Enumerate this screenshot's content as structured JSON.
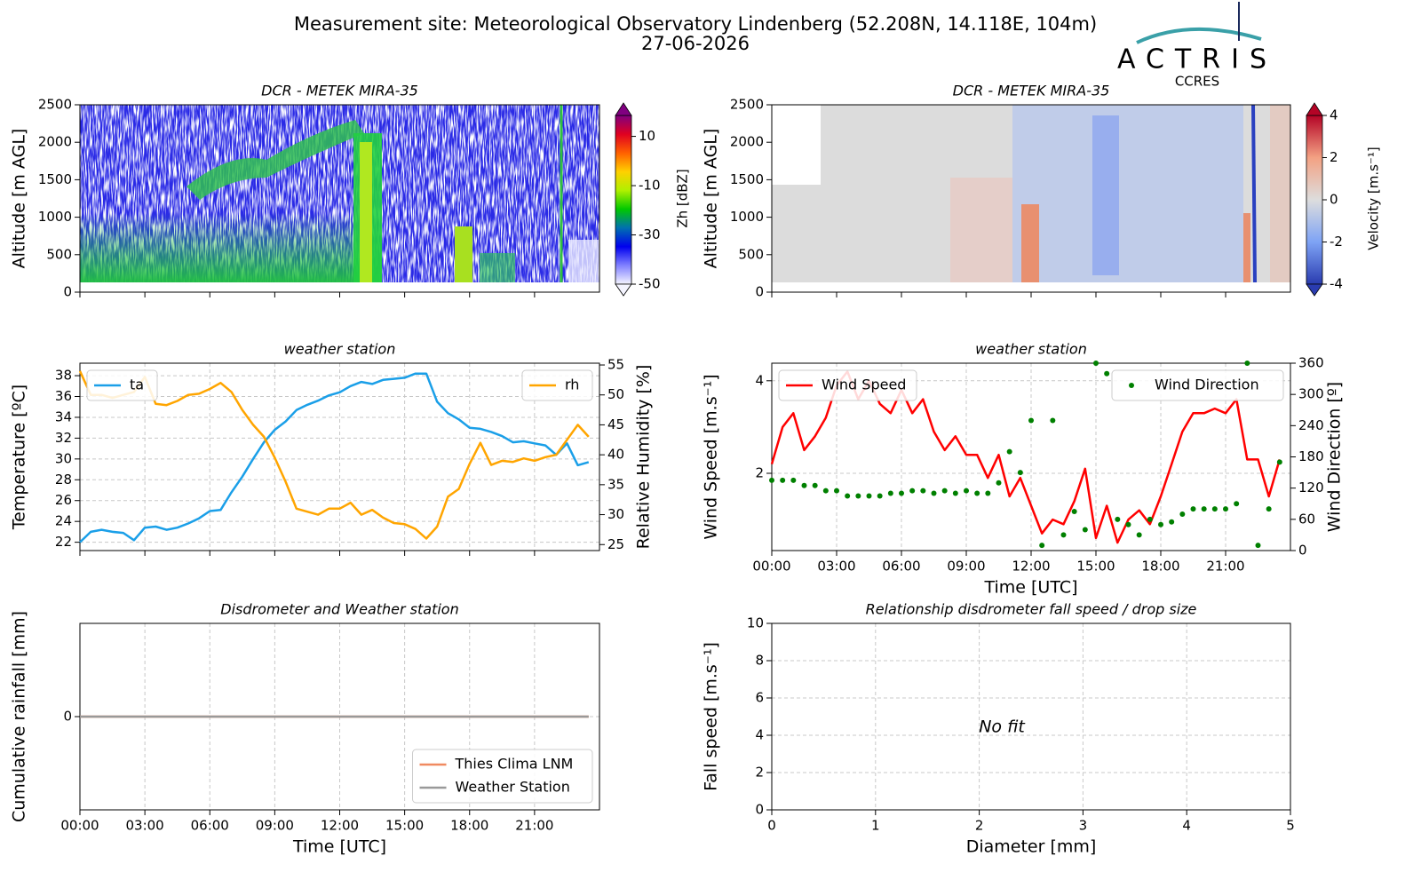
{
  "header": {
    "title": "Measurement site: Meteorological Observatory Lindenberg (52.208N, 14.118E, 104m)",
    "date": "27-06-2026"
  },
  "logo": {
    "name": "ACTRIS",
    "sub": "CCRES"
  },
  "chart_data": [
    {
      "type": "heatmap",
      "title": "DCR - METEK MIRA-35",
      "y_label": "Altitude [m AGL]",
      "xlim": [
        0,
        24
      ],
      "xticks": [
        0,
        3,
        6,
        9,
        12,
        15,
        18,
        21
      ],
      "xtick_labels": false,
      "ylim": [
        0,
        2500
      ],
      "yticks": [
        0,
        500,
        1000,
        1500,
        2000,
        2500
      ],
      "grid": false,
      "colorbar": {
        "label": "Zh [dBZ]",
        "lim": [
          -50,
          18.5
        ],
        "ticks": [
          -50,
          -30,
          -10,
          10
        ],
        "colors": [
          "#f4f4ff",
          "#8080ff",
          "#0000ee",
          "#0070b0",
          "#00c800",
          "#b0f000",
          "#ffd000",
          "#ff6000",
          "#e00020",
          "#800080"
        ]
      }
    },
    {
      "type": "heatmap",
      "title": "DCR - METEK MIRA-35",
      "y_label": "Altitude [m AGL]",
      "xlim": [
        0,
        24
      ],
      "xticks": [
        0,
        3,
        6,
        9,
        12,
        15,
        18,
        21
      ],
      "xtick_labels": false,
      "ylim": [
        0,
        2500
      ],
      "yticks": [
        0,
        500,
        1000,
        1500,
        2000,
        2500
      ],
      "grid": false,
      "colorbar": {
        "label": "Velocity [m.s⁻¹]",
        "lim": [
          -4,
          4
        ],
        "ticks": [
          -4,
          -2,
          0,
          2,
          4
        ],
        "colors": [
          "#2a3cb0",
          "#7ea3f5",
          "#dddddd",
          "#f3a183",
          "#b40426"
        ]
      }
    },
    {
      "type": "line",
      "title": "weather station",
      "y_label": "Temperature [ºC]",
      "y2_label": "Relative Humidity [%]",
      "xlim": [
        0,
        24
      ],
      "xticks": [
        0,
        3,
        6,
        9,
        12,
        15,
        18,
        21
      ],
      "xtick_labels": false,
      "ylim": [
        21.2,
        39.2
      ],
      "yticks": [
        22,
        24,
        26,
        28,
        30,
        32,
        34,
        36,
        38
      ],
      "y2lim": [
        24,
        55.3
      ],
      "y2ticks": [
        25,
        30,
        35,
        40,
        45,
        50,
        55
      ],
      "grid": true,
      "x": [
        0,
        0.5,
        1,
        1.5,
        2,
        2.5,
        3,
        3.5,
        4,
        4.5,
        5,
        5.5,
        6,
        6.5,
        7,
        7.5,
        8,
        8.5,
        9,
        9.5,
        10,
        10.5,
        11,
        11.5,
        12,
        12.5,
        13,
        13.5,
        14,
        14.5,
        15,
        15.5,
        16,
        16.5,
        17,
        17.5,
        18,
        18.5,
        19,
        19.5,
        20,
        20.5,
        21,
        21.5,
        22,
        22.5,
        23,
        23.5
      ],
      "series": [
        {
          "name": "ta",
          "color": "#1a9fe8",
          "style": "line",
          "legend": "upper left",
          "values": [
            22,
            23,
            23.2,
            23,
            22.9,
            22.2,
            23.4,
            23.5,
            23.2,
            23.4,
            23.8,
            24.3,
            25,
            25.1,
            26.8,
            28.3,
            30,
            31.6,
            32.8,
            33.6,
            34.7,
            35.2,
            35.6,
            36.1,
            36.4,
            37,
            37.4,
            37.2,
            37.6,
            37.7,
            37.8,
            38.2,
            38.2,
            35.5,
            34.4,
            33.8,
            33,
            32.9,
            32.6,
            32.2,
            31.6,
            31.7,
            31.5,
            31.3,
            30.4,
            31.5,
            29.4,
            29.7
          ]
        },
        {
          "name": "rh",
          "color": "#ffa500",
          "style": "line",
          "legend": "upper right",
          "axis": "y2",
          "values": [
            54,
            50,
            50,
            49.5,
            50,
            50.5,
            53,
            48.5,
            48.3,
            49,
            50,
            50.2,
            51,
            52,
            50.5,
            47.5,
            45,
            43,
            39.5,
            35.5,
            31,
            30.5,
            30,
            31,
            31,
            32,
            30,
            30.8,
            29.5,
            28.6,
            28.4,
            27.6,
            26,
            28,
            33,
            34.3,
            38.5,
            42,
            38.3,
            39,
            38.8,
            39.4,
            39,
            39.6,
            40,
            42.5,
            45,
            43
          ]
        }
      ]
    },
    {
      "type": "line",
      "title": "weather station",
      "y_label": "Wind Speed [m.s⁻¹]",
      "y2_label": "Wind Direction [º]",
      "x_label": "Time [UTC]",
      "xlim": [
        0,
        24
      ],
      "xticks": [
        {
          "value": 0,
          "label": "00:00"
        },
        {
          "value": 3,
          "label": "03:00"
        },
        {
          "value": 6,
          "label": "06:00"
        },
        {
          "value": 9,
          "label": "09:00"
        },
        {
          "value": 12,
          "label": "12:00"
        },
        {
          "value": 15,
          "label": "15:00"
        },
        {
          "value": 18,
          "label": "18:00"
        },
        {
          "value": 21,
          "label": "21:00"
        }
      ],
      "ylim": [
        0.33,
        4.38
      ],
      "yticks": [
        2,
        4
      ],
      "y2lim": [
        0,
        360
      ],
      "y2ticks": [
        0,
        60,
        120,
        180,
        240,
        300,
        360
      ],
      "grid": true,
      "x": [
        0,
        0.5,
        1,
        1.5,
        2,
        2.5,
        3,
        3.5,
        4,
        4.5,
        5,
        5.5,
        6,
        6.5,
        7,
        7.5,
        8,
        8.5,
        9,
        9.5,
        10,
        10.5,
        11,
        11.5,
        12,
        12.5,
        13,
        13.5,
        14,
        14.5,
        15,
        15.5,
        16,
        16.5,
        17,
        17.5,
        18,
        18.5,
        19,
        19.5,
        20,
        20.5,
        21,
        21.5,
        22,
        22.5,
        23,
        23.5
      ],
      "series": [
        {
          "name": "Wind Speed",
          "color": "#ff0000",
          "style": "line",
          "legend": "upper left",
          "values": [
            2.2,
            3.0,
            3.3,
            2.5,
            2.8,
            3.2,
            3.9,
            4.2,
            3.6,
            4.0,
            3.5,
            3.3,
            3.8,
            3.3,
            3.6,
            2.9,
            2.5,
            2.8,
            2.4,
            2.4,
            1.9,
            2.4,
            1.5,
            1.9,
            1.3,
            0.7,
            1.0,
            0.9,
            1.4,
            2.1,
            0.6,
            1.3,
            0.5,
            1.0,
            1.2,
            0.9,
            1.5,
            2.2,
            2.9,
            3.3,
            3.3,
            3.4,
            3.3,
            3.6,
            2.3,
            2.3,
            1.5,
            2.3
          ]
        },
        {
          "name": "Wind Direction",
          "color": "#008000",
          "style": "markers",
          "legend": "upper right",
          "axis": "y2",
          "values": [
            135,
            135,
            135,
            125,
            125,
            115,
            115,
            105,
            105,
            105,
            105,
            110,
            110,
            115,
            115,
            110,
            115,
            110,
            115,
            110,
            110,
            130,
            190,
            150,
            250,
            10,
            250,
            30,
            75,
            40,
            360,
            340,
            60,
            50,
            30,
            60,
            50,
            55,
            70,
            80,
            80,
            80,
            80,
            90,
            360,
            10,
            80,
            170
          ]
        }
      ]
    },
    {
      "type": "line",
      "title": "Disdrometer and Weather station",
      "y_label": "Cumulative rainfall [mm]",
      "x_label": "Time [UTC]",
      "xlim": [
        0,
        24
      ],
      "xticks": [
        {
          "value": 0,
          "label": "00:00"
        },
        {
          "value": 3,
          "label": "03:00"
        },
        {
          "value": 6,
          "label": "06:00"
        },
        {
          "value": 9,
          "label": "09:00"
        },
        {
          "value": 12,
          "label": "12:00"
        },
        {
          "value": 15,
          "label": "15:00"
        },
        {
          "value": 18,
          "label": "18:00"
        },
        {
          "value": 21,
          "label": "21:00"
        }
      ],
      "ylim": [
        -1,
        1
      ],
      "yticks": [
        0
      ],
      "grid": true,
      "x": [
        0,
        23.5
      ],
      "series": [
        {
          "name": "Thies Clima LNM",
          "color": "#f08a60",
          "style": "line",
          "legend": "lower right",
          "values": [
            0,
            0
          ]
        },
        {
          "name": "Weather Station",
          "color": "#999999",
          "style": "line",
          "legend": "lower right",
          "values": [
            0,
            0
          ]
        }
      ]
    },
    {
      "type": "scatter",
      "title": "Relationship disdrometer fall speed / drop size",
      "y_label": "Fall speed [m.s⁻¹]",
      "x_label": "Diameter [mm]",
      "xlim": [
        0,
        5
      ],
      "xticks": [
        0,
        1,
        2,
        3,
        4,
        5
      ],
      "ylim": [
        0,
        10
      ],
      "yticks": [
        0,
        2,
        4,
        6,
        8,
        10
      ],
      "grid": true,
      "annotation": "No fit"
    }
  ]
}
